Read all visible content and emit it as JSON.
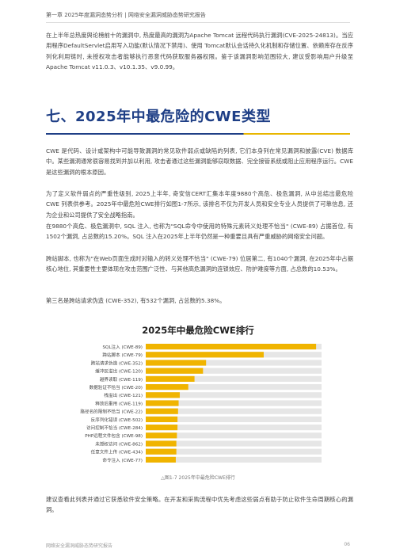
{
  "header": {
    "text": "第一章 2025年度漏洞态势分析 | 网络安全漏洞威胁态势研究报告"
  },
  "intro_paragraph": "在上半年总热度舆论榜前十的漏洞中, 热度最高的漏洞为Apache Tomcat 远程代码执行漏洞(CVE-2025-24813)。当应用程序DefaultServlet启用写入功能(默认情况下禁用)、使用 Tomcat默认会话持久化机制和存储位置、依赖库存在反序列化利用链时, 未授权攻击者能够执行恶意代码获取服务器权限。鉴于该漏洞影响范围较大, 建议受影响用户升级至Apache Tomcat v11.0.3、v10.1.35、v9.0.99。",
  "section_title": "七、2025年中最危险的CWE类型",
  "body_paragraphs": [
    "CWE 是代码、设计或架构中可能导致漏洞的常见软件弱点或缺陷的列表, 它们本身列在常见漏洞和披露(CVE) 数据库中。某些漏洞通常很容易找到并加以利用, 攻击者通过这些漏洞能够窃取数据、完全接管系统或阻止应用程序运行。CWE 是这些漏洞的根本原因。",
    "为了定义软件弱点的严重性级别, 2025上半年, 奇安信CERT汇集本年度9880个高危、极危漏洞, 从中总结出最危险 CWE 列表供参考。2025年中最危险CWE排行如图1-7所示, 该排名不仅为开发人员和安全专业人员提供了可靠信息, 还为企业和公司提供了安全战略指南。",
    "在9880个高危、极危漏洞中, SQL 注入, 也称为\"SQL命令中使用的特殊元素转义处理不恰当\" (CWE-89) 占据首位, 有1502个漏洞, 占总数的15.20%。SQL 注入在2025年上半年仍然是一种重要且具有严重威胁的网络安全问题。",
    "跨站脚本, 也称为\"在Web页面生成时对输入的转义处理不恰当\" (CWE-79) 位居第二, 有1040个漏洞, 在2025年中占据核心地位, 其重要性主要体现在攻击范围广泛性、与其他高危漏洞的连锁效应、防护难度等方面, 占总数的10.53%。",
    "第三名是跨站请求伪造 (CWE-352), 有532个漏洞, 占总数的5.38%。"
  ],
  "chart_title": "2025年中最危险CWE排行",
  "chart_data": {
    "type": "bar",
    "orientation": "horizontal",
    "categories": [
      "SQL注入 (CWE-89)",
      "跨站脚本 (CWE-79)",
      "跨站请求伪造 (CWE-352)",
      "缓冲区溢出 (CWE-120)",
      "越界读取 (CWE-119)",
      "数据验证不恰当 (CWE-20)",
      "栈溢出 (CWE-121)",
      "释放后重用 (CWE-119)",
      "路径名的限制不恰当 (CWE-22)",
      "反序列化错误 (CWE-502)",
      "访问控制不恰当 (CWE-284)",
      "PHP远程文件包含 (CWE-98)",
      "未授权访问 (CWE-862)",
      "任意文件上传 (CWE-434)",
      "命令注入 (CWE-77)"
    ],
    "values": [
      1502,
      1040,
      532,
      505,
      430,
      375,
      300,
      290,
      285,
      280,
      280,
      275,
      270,
      270,
      265
    ],
    "xlim": [
      0,
      1550
    ],
    "grid": false,
    "colors": {
      "bar": "#f0b400",
      "track": "#e6e6e6"
    }
  },
  "caption": "△图1-7 2025年中最危险CWE排行",
  "closing_paragraph": "建议查看此列表并通过它获悉软件安全策略。在开发和采购流程中优先考虑这些弱点有助于防止软件生命周期核心的漏洞。",
  "footer": {
    "text": "网络安全漏洞威胁态势研究报告",
    "page": "06"
  }
}
